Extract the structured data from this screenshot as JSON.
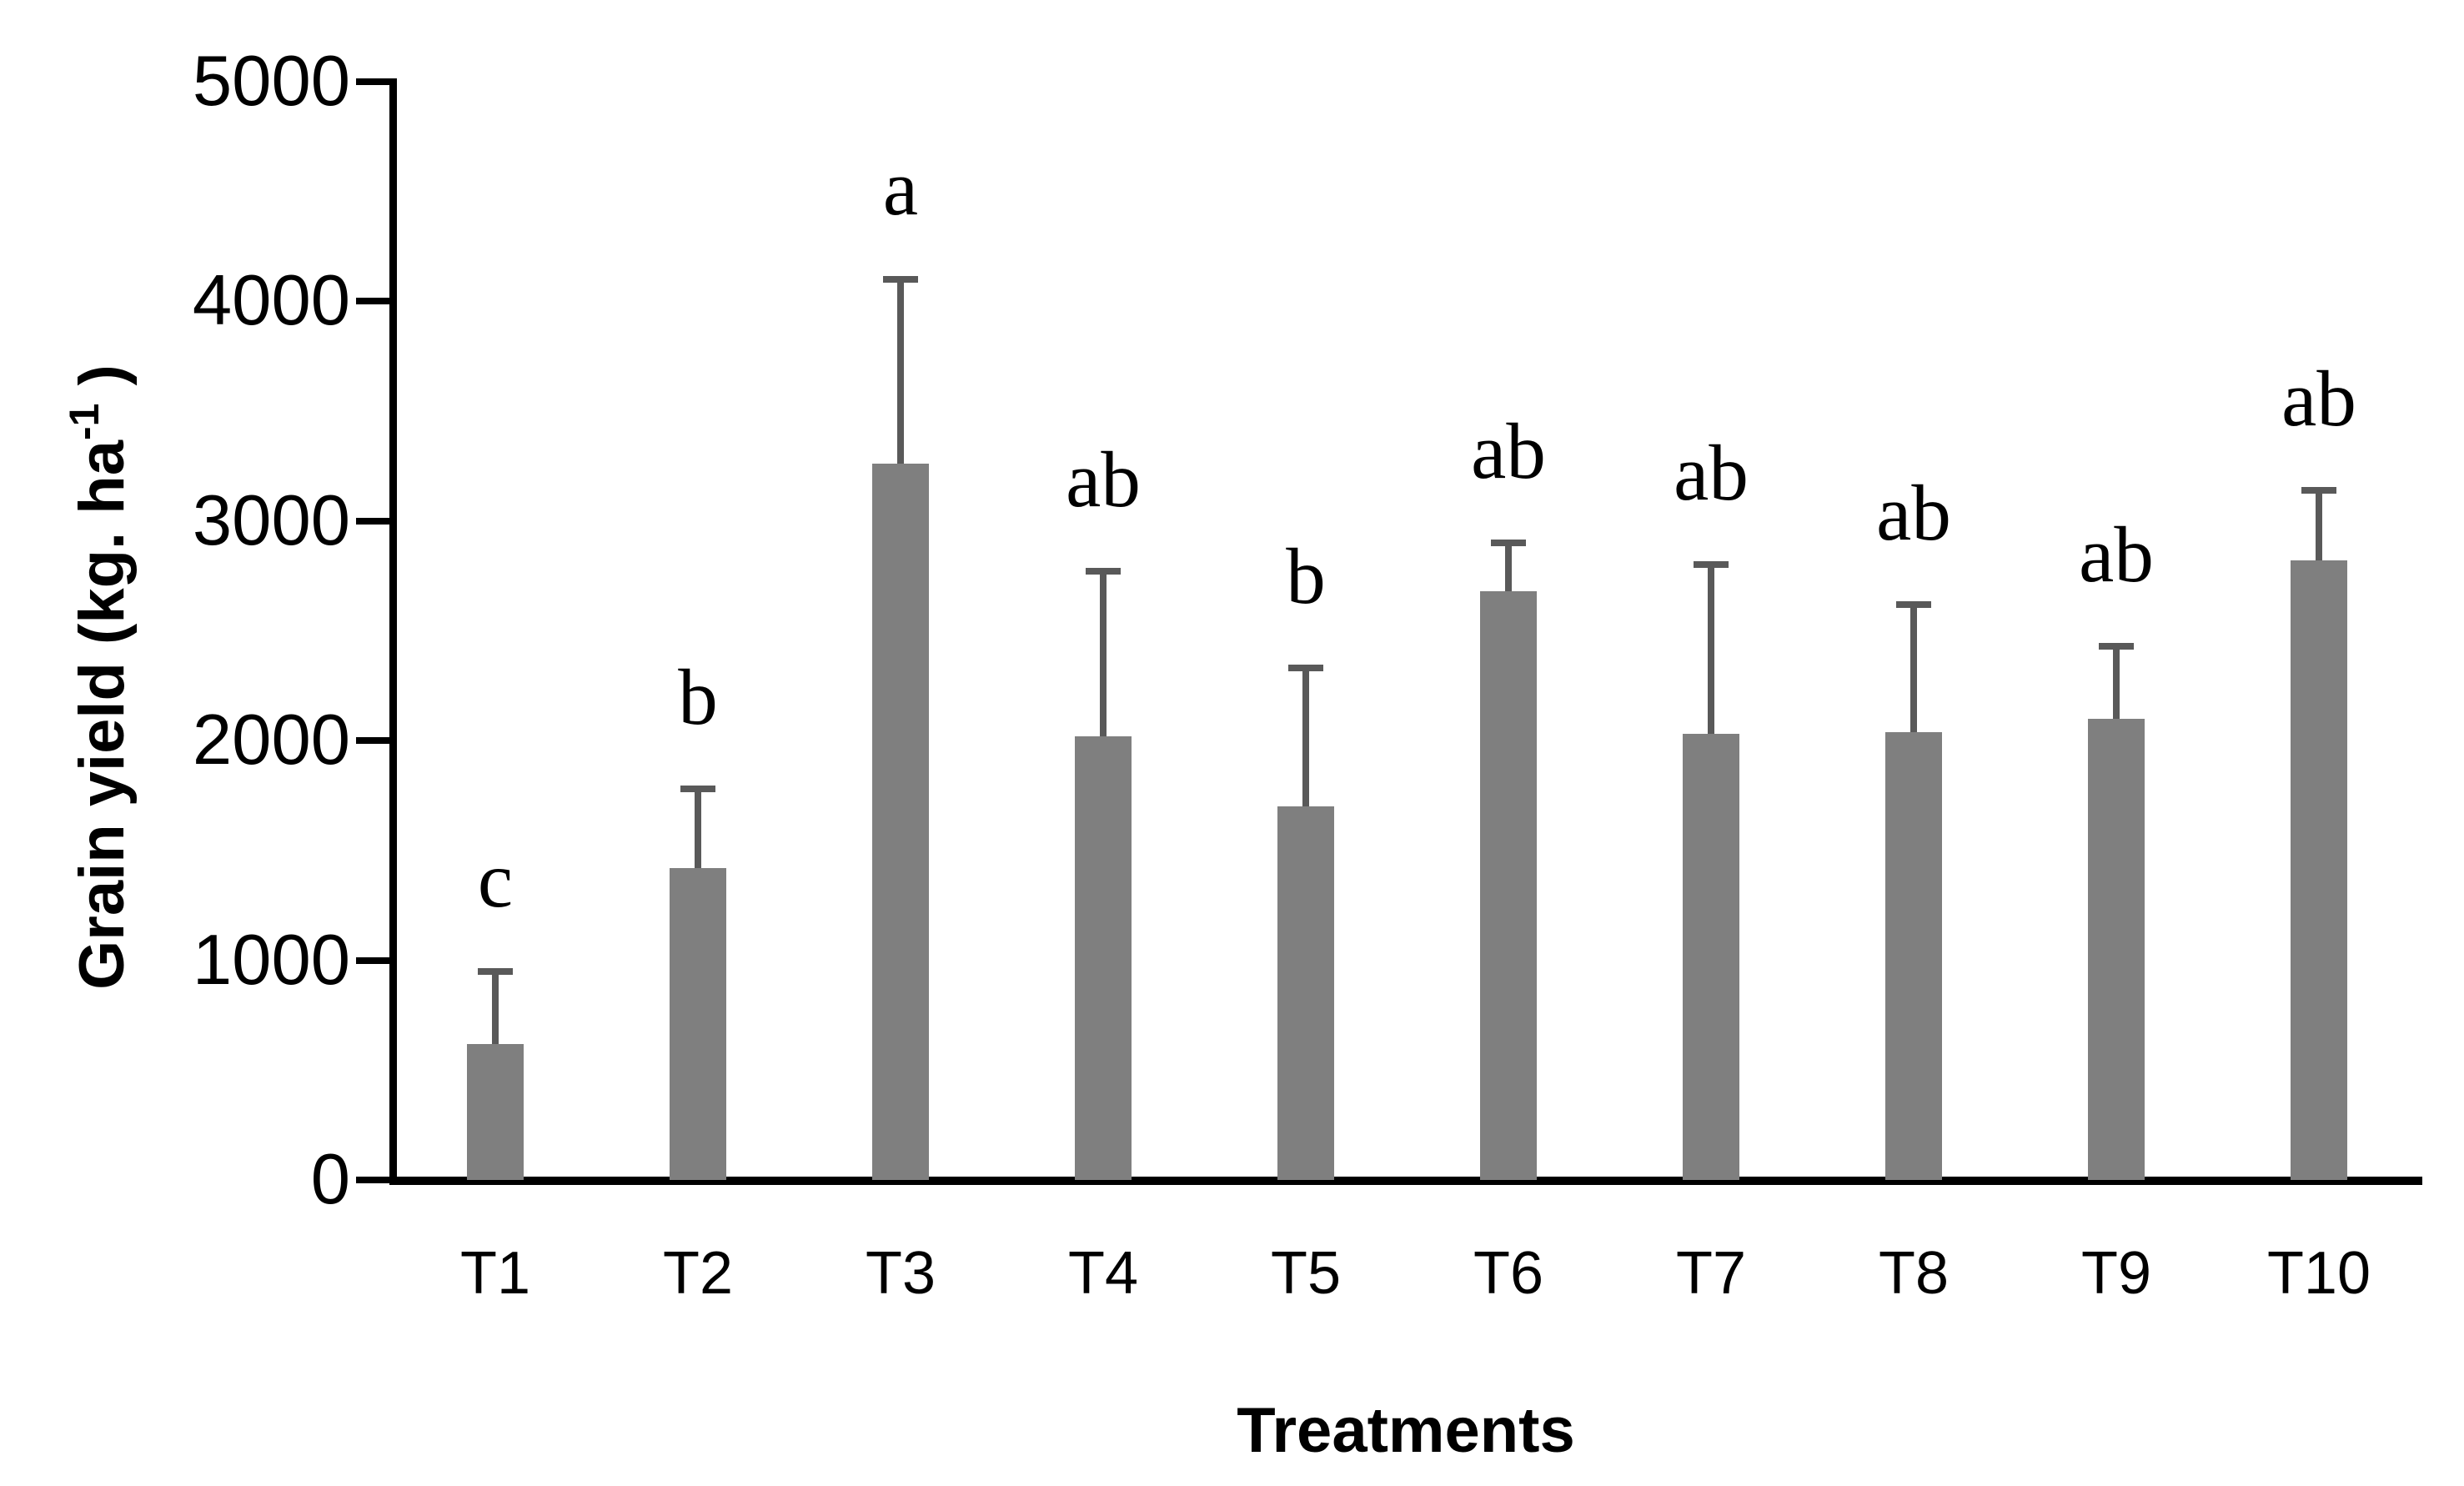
{
  "chart_data": {
    "type": "bar",
    "title": "",
    "xlabel": "Treatments",
    "ylabel_prefix": "Grain yield (kg. ha",
    "ylabel_superscript": "-1",
    "ylabel_suffix": " )",
    "ylabel_full": "Grain yield (kg. ha-1)",
    "categories": [
      "T1",
      "T2",
      "T3",
      "T4",
      "T5",
      "T6",
      "T7",
      "T8",
      "T9",
      "T10"
    ],
    "values": [
      620,
      1420,
      3260,
      2020,
      1700,
      2680,
      2030,
      2040,
      2100,
      2820
    ],
    "error_bar_tops": [
      950,
      1780,
      4100,
      2770,
      2330,
      2900,
      2800,
      2620,
      2430,
      3140
    ],
    "significance_letters": [
      "c",
      "b",
      "a",
      "ab",
      "b",
      "ab",
      "ab",
      "ab",
      "ab",
      "ab"
    ],
    "yticks": [
      0,
      1000,
      2000,
      3000,
      4000,
      5000
    ],
    "ylim": [
      0,
      5000
    ],
    "grid": false,
    "legend": false,
    "bar_color": "#7f7f7f",
    "error_bar_color": "#595959",
    "axis_color": "#000000",
    "text_color": "#000000",
    "background_color": "#ffffff"
  }
}
